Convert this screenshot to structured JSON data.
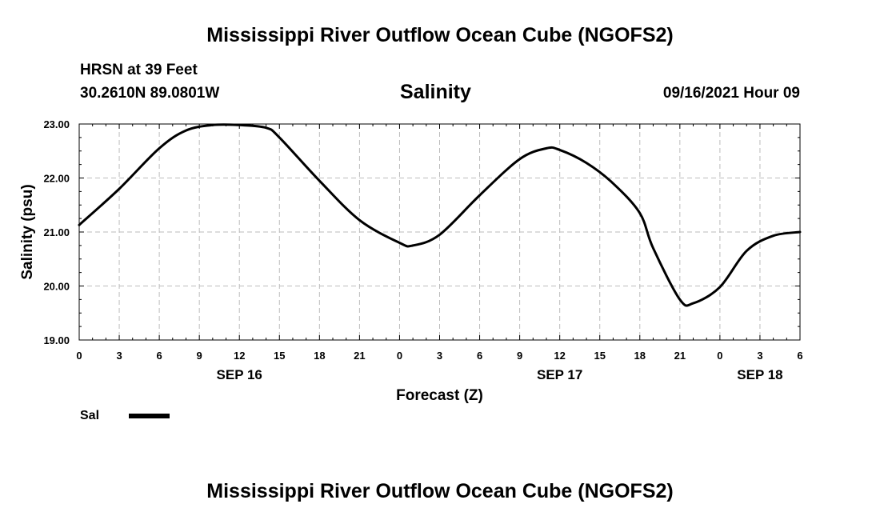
{
  "page": {
    "title_top": "Mississippi River Outflow Ocean Cube (NGOFS2)",
    "title_bottom": "Mississippi River Outflow Ocean Cube (NGOFS2)",
    "station": "HRSN at 39 Feet",
    "coords": "30.2610N  89.0801W",
    "variable": "Salinity",
    "datetime": "09/16/2021 Hour 09"
  },
  "chart_data": {
    "type": "line",
    "title": "Salinity",
    "xlabel": "Forecast (Z)",
    "ylabel": "Salinity (psu)",
    "xlim": [
      0,
      54
    ],
    "ylim": [
      19,
      23
    ],
    "grid": true,
    "x_ticks": [
      0,
      3,
      6,
      9,
      12,
      15,
      18,
      21,
      24,
      27,
      30,
      33,
      36,
      39,
      42,
      45,
      48,
      51,
      54
    ],
    "x_tick_labels": [
      "0",
      "3",
      "6",
      "9",
      "12",
      "15",
      "18",
      "21",
      "0",
      "3",
      "6",
      "9",
      "12",
      "15",
      "18",
      "21",
      "0",
      "3",
      "6"
    ],
    "y_ticks": [
      19,
      20,
      21,
      22,
      23
    ],
    "y_tick_labels": [
      "19.00",
      "20.00",
      "21.00",
      "22.00",
      "23.00"
    ],
    "day_labels": [
      {
        "x": 12,
        "label": "SEP 16"
      },
      {
        "x": 36,
        "label": "SEP 17"
      },
      {
        "x": 51,
        "label": "SEP 18"
      }
    ],
    "legend": [
      {
        "name": "Sal",
        "color": "#000000"
      }
    ],
    "series": [
      {
        "name": "Sal",
        "color": "#000000",
        "x": [
          0,
          3,
          6,
          8,
          10,
          12,
          14,
          15,
          18,
          21,
          24,
          25,
          27,
          30,
          33,
          35,
          36,
          38,
          40,
          42,
          43,
          45,
          46,
          48,
          50,
          52,
          54
        ],
        "y": [
          21.13,
          21.8,
          22.55,
          22.88,
          22.98,
          22.98,
          22.93,
          22.75,
          21.95,
          21.22,
          20.8,
          20.75,
          20.95,
          21.68,
          22.35,
          22.55,
          22.52,
          22.28,
          21.9,
          21.35,
          20.7,
          19.75,
          19.68,
          19.98,
          20.65,
          20.93,
          21.0
        ]
      }
    ]
  }
}
